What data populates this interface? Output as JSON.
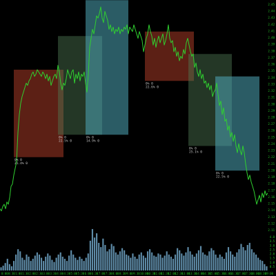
{
  "chart_data": {
    "type": "line",
    "title": "",
    "xlabel": "",
    "ylabel": "",
    "grid": false,
    "colors": {
      "price": "#30d030",
      "volume": "#6fa3c4",
      "axis_text": "#25c725",
      "box_red": "#a83a26",
      "box_green": "#4f7a55",
      "box_cyan": "#4fa8b8"
    },
    "price_range": [
      0,
      100
    ],
    "volume_range": [
      0,
      100
    ],
    "price_series": [
      [
        0,
        10
      ],
      [
        2,
        9
      ],
      [
        4,
        11
      ],
      [
        6,
        12
      ],
      [
        8,
        10
      ],
      [
        10,
        13
      ],
      [
        12,
        12
      ],
      [
        14,
        15
      ],
      [
        16,
        20
      ],
      [
        18,
        21
      ],
      [
        20,
        25
      ],
      [
        22,
        28
      ],
      [
        24,
        31
      ],
      [
        26,
        44
      ],
      [
        28,
        52
      ],
      [
        30,
        57
      ],
      [
        32,
        60
      ],
      [
        34,
        62
      ],
      [
        36,
        64
      ],
      [
        38,
        66
      ],
      [
        40,
        65
      ],
      [
        42,
        67
      ],
      [
        44,
        68
      ],
      [
        46,
        70
      ],
      [
        48,
        71
      ],
      [
        50,
        69
      ],
      [
        52,
        70
      ],
      [
        54,
        72
      ],
      [
        56,
        71
      ],
      [
        58,
        70
      ],
      [
        60,
        69
      ],
      [
        62,
        71
      ],
      [
        64,
        70
      ],
      [
        66,
        68
      ],
      [
        68,
        70
      ],
      [
        70,
        67
      ],
      [
        72,
        69
      ],
      [
        74,
        65
      ],
      [
        76,
        67
      ],
      [
        78,
        69
      ],
      [
        80,
        70
      ],
      [
        82,
        68
      ],
      [
        84,
        74
      ],
      [
        86,
        71
      ],
      [
        88,
        66
      ],
      [
        90,
        63
      ],
      [
        92,
        66
      ],
      [
        94,
        65
      ],
      [
        96,
        68
      ],
      [
        98,
        72
      ],
      [
        100,
        70
      ],
      [
        102,
        68
      ],
      [
        104,
        71
      ],
      [
        106,
        72
      ],
      [
        108,
        66
      ],
      [
        110,
        70
      ],
      [
        112,
        68
      ],
      [
        114,
        71
      ],
      [
        116,
        67
      ],
      [
        118,
        70
      ],
      [
        120,
        69
      ],
      [
        122,
        71
      ],
      [
        124,
        66
      ],
      [
        126,
        62
      ],
      [
        128,
        70
      ],
      [
        130,
        82
      ],
      [
        132,
        86
      ],
      [
        134,
        90
      ],
      [
        136,
        88
      ],
      [
        138,
        92
      ],
      [
        140,
        96
      ],
      [
        142,
        95
      ],
      [
        144,
        97
      ],
      [
        146,
        100
      ],
      [
        148,
        95
      ],
      [
        150,
        93
      ],
      [
        152,
        98
      ],
      [
        154,
        96
      ],
      [
        156,
        94
      ],
      [
        158,
        90
      ],
      [
        160,
        92
      ],
      [
        162,
        89
      ],
      [
        164,
        91
      ],
      [
        166,
        88
      ],
      [
        168,
        90
      ],
      [
        170,
        89
      ],
      [
        172,
        91
      ],
      [
        174,
        88
      ],
      [
        176,
        90
      ],
      [
        178,
        89
      ],
      [
        180,
        91
      ],
      [
        182,
        90
      ],
      [
        184,
        92
      ],
      [
        186,
        88
      ],
      [
        188,
        91
      ],
      [
        190,
        90
      ],
      [
        192,
        89
      ],
      [
        194,
        92
      ],
      [
        196,
        90
      ],
      [
        198,
        88
      ],
      [
        200,
        86
      ],
      [
        202,
        89
      ],
      [
        204,
        87
      ],
      [
        206,
        85
      ],
      [
        208,
        80
      ],
      [
        210,
        83
      ],
      [
        212,
        86
      ],
      [
        214,
        88
      ],
      [
        216,
        92
      ],
      [
        218,
        89
      ],
      [
        220,
        87
      ],
      [
        222,
        83
      ],
      [
        224,
        86
      ],
      [
        226,
        82
      ],
      [
        228,
        85
      ],
      [
        230,
        87
      ],
      [
        232,
        84
      ],
      [
        234,
        86
      ],
      [
        236,
        88
      ],
      [
        238,
        83
      ],
      [
        240,
        85
      ],
      [
        242,
        88
      ],
      [
        244,
        92
      ],
      [
        246,
        86
      ],
      [
        248,
        84
      ],
      [
        250,
        85
      ],
      [
        252,
        80
      ],
      [
        254,
        82
      ],
      [
        256,
        78
      ],
      [
        258,
        80
      ],
      [
        260,
        76
      ],
      [
        262,
        78
      ],
      [
        264,
        77
      ],
      [
        266,
        81
      ],
      [
        268,
        79
      ],
      [
        270,
        84
      ],
      [
        272,
        86
      ],
      [
        274,
        83
      ],
      [
        276,
        80
      ],
      [
        278,
        78
      ],
      [
        280,
        79
      ],
      [
        282,
        73
      ],
      [
        284,
        75
      ],
      [
        286,
        71
      ],
      [
        288,
        69
      ],
      [
        290,
        72
      ],
      [
        292,
        68
      ],
      [
        294,
        70
      ],
      [
        296,
        66
      ],
      [
        298,
        67
      ],
      [
        300,
        64
      ],
      [
        302,
        66
      ],
      [
        304,
        63
      ],
      [
        306,
        65
      ],
      [
        308,
        60
      ],
      [
        310,
        62
      ],
      [
        312,
        63
      ],
      [
        314,
        66
      ],
      [
        316,
        61
      ],
      [
        318,
        56
      ],
      [
        320,
        58
      ],
      [
        322,
        52
      ],
      [
        324,
        55
      ],
      [
        326,
        49
      ],
      [
        328,
        50
      ],
      [
        330,
        45
      ],
      [
        332,
        47
      ],
      [
        334,
        42
      ],
      [
        336,
        44
      ],
      [
        338,
        40
      ],
      [
        340,
        43
      ],
      [
        342,
        38
      ],
      [
        344,
        35
      ],
      [
        346,
        39
      ],
      [
        348,
        36
      ],
      [
        350,
        34
      ],
      [
        352,
        38
      ],
      [
        354,
        35
      ],
      [
        356,
        30
      ],
      [
        358,
        26
      ],
      [
        360,
        23
      ],
      [
        362,
        25
      ],
      [
        364,
        22
      ],
      [
        366,
        20
      ],
      [
        368,
        18
      ],
      [
        370,
        15
      ],
      [
        372,
        12
      ],
      [
        374,
        14
      ],
      [
        376,
        16
      ],
      [
        378,
        13
      ],
      [
        380,
        17
      ],
      [
        382,
        15
      ],
      [
        384,
        18
      ],
      [
        386,
        16
      ],
      [
        388,
        17
      ]
    ],
    "volume": [
      6,
      9,
      14,
      22,
      12,
      8,
      18,
      30,
      40,
      36,
      24,
      20,
      30,
      26,
      18,
      22,
      28,
      34,
      30,
      24,
      18,
      26,
      32,
      28,
      20,
      16,
      24,
      30,
      34,
      26,
      22,
      18,
      28,
      38,
      30,
      24,
      20,
      26,
      22,
      18,
      24,
      32,
      56,
      78,
      62,
      70,
      52,
      44,
      60,
      48,
      36,
      40,
      50,
      46,
      34,
      30,
      36,
      42,
      38,
      30,
      28,
      24,
      32,
      26,
      22,
      30,
      34,
      28,
      24,
      36,
      40,
      34,
      28,
      26,
      32,
      30,
      24,
      28,
      36,
      30,
      26,
      22,
      30,
      42,
      38,
      32,
      28,
      34,
      44,
      36,
      30,
      26,
      32,
      38,
      46,
      34,
      30,
      28,
      36,
      42,
      38,
      30,
      24,
      30,
      26,
      22,
      34,
      44,
      36,
      30,
      26,
      34,
      40,
      50,
      44,
      38,
      48,
      52,
      40,
      34,
      30,
      24,
      20,
      18,
      12,
      8
    ],
    "boxes": [
      {
        "kind": "red",
        "x0": 20,
        "x1": 92,
        "y0": 33,
        "y1": 72,
        "label_line1": "0% 0",
        "label_line2": "21.4% 0"
      },
      {
        "kind": "green",
        "x0": 84,
        "x1": 148,
        "y0": 43,
        "y1": 87,
        "label_line1": "0% 0",
        "label_line2": "22.5% 0"
      },
      {
        "kind": "cyan",
        "x0": 124,
        "x1": 186,
        "y0": 43,
        "y1": 92,
        "label_line1": "0% 0",
        "label_line2": "14.9% 0"
      },
      {
        "kind": "red",
        "x0": 210,
        "x1": 281,
        "y0": 67,
        "y1": 89,
        "label_line1": "0% 0",
        "label_line2": "22.6% 0"
      },
      {
        "kind": "green",
        "x0": 273,
        "x1": 336,
        "y0": 38,
        "y1": 79,
        "label_line1": "0% 0",
        "label_line2": "25.1% 0"
      },
      {
        "kind": "cyan",
        "x0": 312,
        "x1": 376,
        "y0": 27,
        "y1": 69,
        "label_line1": "0% 0",
        "label_line2": "22.5% 0"
      }
    ],
    "price_ticks": [
      "2.45",
      "2.44",
      "2.43",
      "2.42",
      "2.41",
      "2.40",
      "2.39",
      "2.38",
      "2.37",
      "2.36",
      "2.35",
      "2.34",
      "2.33",
      "2.32",
      "2.31",
      "2.30",
      "2.29",
      "2.28",
      "2.27",
      "2.26",
      "2.25",
      "2.24",
      "2.23",
      "2.22",
      "2.21",
      "2.20",
      "2.19",
      "2.18",
      "2.17",
      "2.16",
      "2.15",
      "2.14",
      "2.13",
      "2.12",
      "2.11"
    ],
    "volume_ticks": [
      "4.0",
      "3.5",
      "3.0",
      "2.5",
      "2.0",
      "1.5",
      "1.0",
      "0.5"
    ],
    "time_ticks": [
      "0:00",
      "0:30",
      "1:00",
      "1:30",
      "2:00",
      "2:30",
      "3:00",
      "3:30",
      "4:00",
      "4:30",
      "5:00",
      "5:30",
      "6:00",
      "6:30",
      "7:00",
      "7:30",
      "8:00",
      "8:30",
      "9:00",
      "9:30",
      "10:00",
      "10:30",
      "11:00",
      "11:30",
      "12:00",
      "12:30",
      "13:00",
      "13:30",
      "14:00",
      "14:30",
      "15:00",
      "15:30",
      "16:00",
      "16:30",
      "17:00",
      "17:30",
      "18:00",
      "18:30",
      "19:00"
    ]
  }
}
